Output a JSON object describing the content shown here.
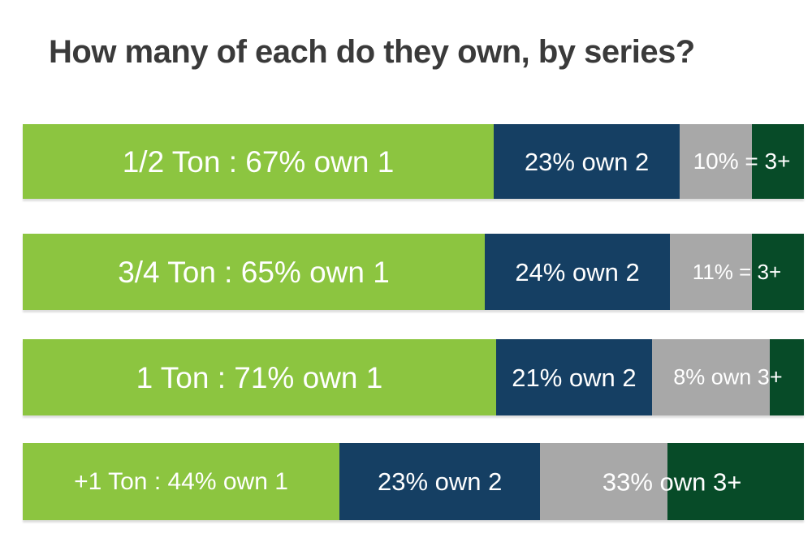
{
  "page": {
    "title": "How many of each do they own, by series?"
  },
  "colors": {
    "background": "#ffffff",
    "title_text": "#3a3a3a",
    "bar_text": "#ffffff",
    "own1": "#8cc540",
    "own2": "#153f63",
    "own3_gray": "#a8a8a8",
    "own3_green": "#074b28"
  },
  "chart_data": {
    "type": "bar",
    "orientation": "horizontal-stacked",
    "title": "How many of each do they own, by series?",
    "categories": [
      "1/2 Ton",
      "3/4 Ton",
      "1 Ton",
      "+1 Ton"
    ],
    "series": [
      {
        "name": "own 1",
        "values": [
          67,
          65,
          71,
          44
        ],
        "color": "#8cc540"
      },
      {
        "name": "own 2",
        "values": [
          23,
          24,
          21,
          23
        ],
        "color": "#153f63"
      },
      {
        "name": "own 3+",
        "values": [
          10,
          11,
          8,
          33
        ],
        "color": "#a8a8a8/#074b28"
      }
    ],
    "value_unit": "%",
    "legend": "none",
    "grid": false,
    "labels_inside_bars": true
  },
  "bars": [
    {
      "id": "half-ton",
      "segments": [
        {
          "key": "own1",
          "label": "1/2 Ton : 67% own 1",
          "width_pct": 60.3,
          "font_px": 37
        },
        {
          "key": "own2",
          "label": "23% own 2",
          "width_pct": 23.8,
          "font_px": 31
        },
        {
          "key": "own3",
          "label": "10% = 3+",
          "gray_width_pct": 9.25,
          "green_width_pct": 6.65,
          "font_px": 28
        }
      ]
    },
    {
      "id": "three-quarter-ton",
      "segments": [
        {
          "key": "own1",
          "label": "3/4 Ton : 65% own 1",
          "width_pct": 59.15,
          "font_px": 37
        },
        {
          "key": "own2",
          "label": "24% own 2",
          "width_pct": 23.7,
          "font_px": 31
        },
        {
          "key": "own3",
          "label": "11% = 3+",
          "gray_width_pct": 10.5,
          "green_width_pct": 6.65,
          "font_px": 26
        }
      ]
    },
    {
      "id": "one-ton",
      "segments": [
        {
          "key": "own1",
          "label": "1 Ton : 71% own 1",
          "width_pct": 60.6,
          "font_px": 37
        },
        {
          "key": "own2",
          "label": "21% own 2",
          "width_pct": 19.95,
          "font_px": 31
        },
        {
          "key": "own3",
          "label": "8% own 3+",
          "gray_width_pct": 15.1,
          "green_width_pct": 4.35,
          "font_px": 27
        }
      ]
    },
    {
      "id": "plus-one-ton",
      "segments": [
        {
          "key": "own1",
          "label": "+1 Ton : 44% own 1",
          "width_pct": 40.55,
          "font_px": 30
        },
        {
          "key": "own2",
          "label": "23% own 2",
          "width_pct": 25.7,
          "font_px": 31
        },
        {
          "key": "own3",
          "label": "33% own 3+",
          "gray_width_pct": 16.3,
          "green_width_pct": 17.45,
          "font_px": 31
        }
      ]
    }
  ]
}
